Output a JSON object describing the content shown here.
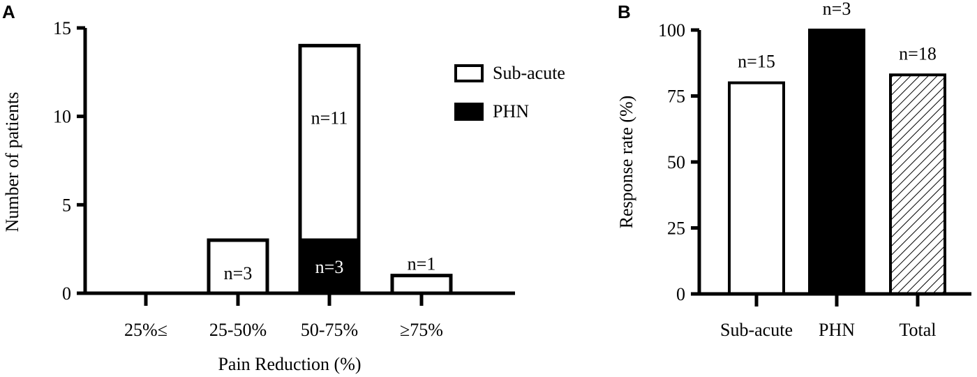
{
  "colors": {
    "ink": "#000000",
    "bar_fill_white": "#ffffff",
    "bar_fill_black": "#000000",
    "hatch": "#000000"
  },
  "chart_data": [
    {
      "panel_label": "A",
      "type": "bar",
      "stacked": true,
      "xlabel": "Pain Reduction (%)",
      "ylabel": "Number of patients",
      "ylim": [
        0,
        15
      ],
      "yticks": [
        0,
        5,
        10,
        15
      ],
      "categories": [
        "25%≤",
        "25-50%",
        "50-75%",
        "≥75%"
      ],
      "series": [
        {
          "name": "PHN",
          "fill": "black",
          "values": [
            0,
            0,
            3,
            0
          ]
        },
        {
          "name": "Sub-acute",
          "fill": "white",
          "values": [
            0,
            3,
            11,
            1
          ]
        }
      ],
      "data_labels": [
        {
          "category": "25-50%",
          "series": "Sub-acute",
          "text": "n=3"
        },
        {
          "category": "50-75%",
          "series": "Sub-acute",
          "text": "n=11"
        },
        {
          "category": "50-75%",
          "series": "PHN",
          "text": "n=3"
        },
        {
          "category": "≥75%",
          "series": "Sub-acute",
          "text": "n=1"
        }
      ],
      "legend": {
        "placement": "top-right",
        "entries": [
          {
            "label": "Sub-acute",
            "fill": "white"
          },
          {
            "label": "PHN",
            "fill": "black"
          }
        ]
      }
    },
    {
      "panel_label": "B",
      "type": "bar",
      "xlabel": "",
      "ylabel": "Response rate (%)",
      "ylim": [
        0,
        100
      ],
      "yticks": [
        0,
        25,
        50,
        75,
        100
      ],
      "categories": [
        "Sub-acute",
        "PHN",
        "Total"
      ],
      "values": [
        80,
        100,
        83
      ],
      "fills": [
        "white",
        "black",
        "hatched"
      ],
      "data_labels": [
        "n=15",
        "n=3",
        "n=18"
      ]
    }
  ]
}
